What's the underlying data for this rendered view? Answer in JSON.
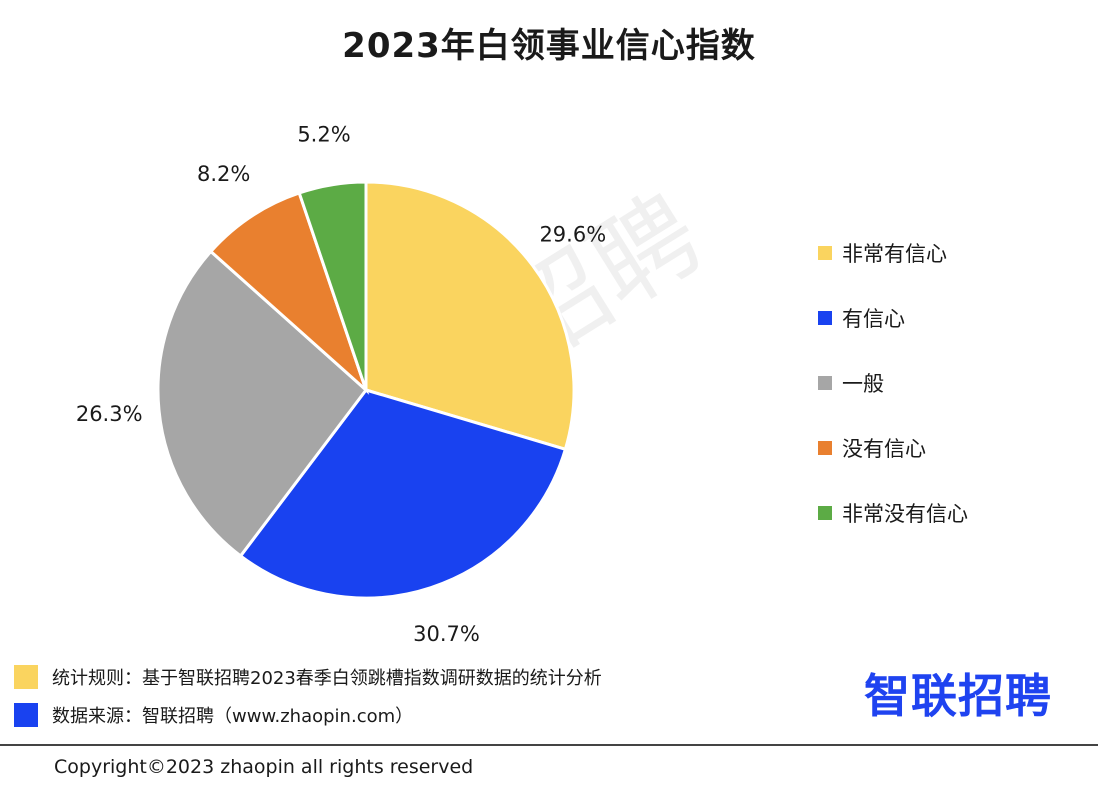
{
  "title": "2023年白领事业信心指数",
  "watermark": "智联招聘",
  "chart_data": {
    "type": "pie",
    "title": "2023年白领事业信心指数",
    "categories": [
      "非常有信心",
      "有信心",
      "一般",
      "没有信心",
      "非常没有信心"
    ],
    "values": [
      29.6,
      30.7,
      26.3,
      8.2,
      5.2
    ],
    "value_labels": [
      "29.6%",
      "30.7%",
      "26.3%",
      "8.2%",
      "5.2%"
    ],
    "colors": [
      "#FAD45F",
      "#1942F0",
      "#A6A6A6",
      "#E9802F",
      "#5CAB45"
    ],
    "start_angle": "12 o'clock",
    "direction": "clockwise",
    "legend_placement": "right"
  },
  "footnotes": [
    {
      "text": "统计规则：基于智联招聘2023春季白领跳槽指数调研数据的统计分析",
      "color": "#FAD45F"
    },
    {
      "text": "数据来源：智联招聘（www.zhaopin.com）",
      "color": "#1942F0"
    }
  ],
  "brand_logo": "智联招聘",
  "copyright": "Copyright©2023 zhaopin all rights reserved"
}
